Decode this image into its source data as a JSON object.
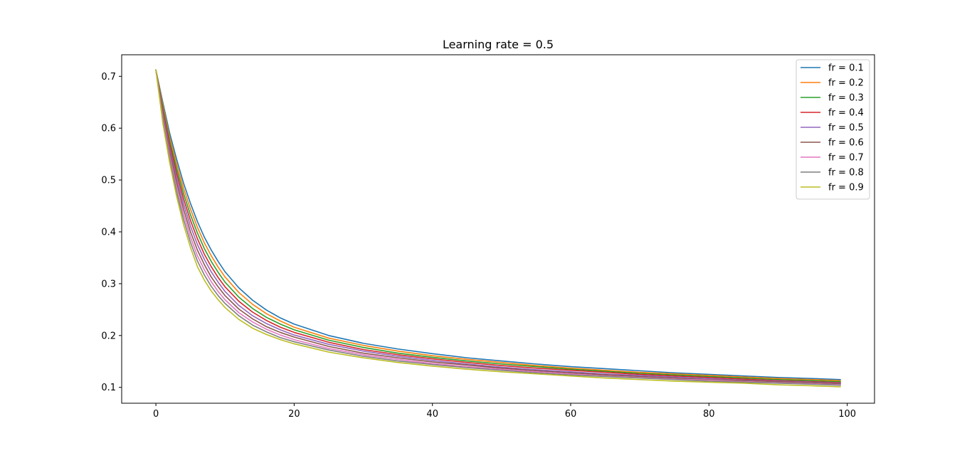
{
  "chart_data": {
    "type": "line",
    "title": "Learning rate = 0.5",
    "xlabel": "",
    "ylabel": "",
    "xlim": [
      -4.95,
      103.95
    ],
    "ylim": [
      0.0694,
      0.7416
    ],
    "xticks": [
      0,
      20,
      40,
      60,
      80,
      100
    ],
    "yticks": [
      0.1,
      0.2,
      0.3,
      0.4,
      0.5,
      0.6,
      0.7
    ],
    "grid": false,
    "legend_position": "top-right",
    "x": [
      0,
      1,
      2,
      3,
      4,
      5,
      6,
      7,
      8,
      9,
      10,
      12,
      14,
      16,
      18,
      20,
      25,
      30,
      35,
      40,
      45,
      50,
      55,
      60,
      65,
      70,
      75,
      80,
      85,
      90,
      95,
      99
    ],
    "series": [
      {
        "name": "fr = 0.1",
        "color": "#1f77b4",
        "values": [
          0.712,
          0.65,
          0.59,
          0.54,
          0.494,
          0.455,
          0.42,
          0.39,
          0.365,
          0.343,
          0.323,
          0.292,
          0.268,
          0.249,
          0.234,
          0.222,
          0.2,
          0.185,
          0.174,
          0.165,
          0.157,
          0.151,
          0.145,
          0.14,
          0.136,
          0.132,
          0.128,
          0.125,
          0.122,
          0.119,
          0.117,
          0.115
        ]
      },
      {
        "name": "fr = 0.2",
        "color": "#ff7f0e",
        "values": [
          0.712,
          0.645,
          0.582,
          0.531,
          0.484,
          0.444,
          0.409,
          0.379,
          0.354,
          0.332,
          0.313,
          0.283,
          0.26,
          0.242,
          0.228,
          0.216,
          0.195,
          0.181,
          0.17,
          0.161,
          0.154,
          0.148,
          0.142,
          0.137,
          0.133,
          0.129,
          0.126,
          0.123,
          0.12,
          0.117,
          0.115,
          0.113
        ]
      },
      {
        "name": "fr = 0.3",
        "color": "#2ca02c",
        "values": [
          0.712,
          0.64,
          0.575,
          0.522,
          0.474,
          0.433,
          0.398,
          0.368,
          0.343,
          0.322,
          0.303,
          0.274,
          0.252,
          0.235,
          0.222,
          0.211,
          0.191,
          0.177,
          0.166,
          0.158,
          0.151,
          0.145,
          0.14,
          0.135,
          0.131,
          0.127,
          0.124,
          0.121,
          0.118,
          0.115,
          0.113,
          0.111
        ]
      },
      {
        "name": "fr = 0.4",
        "color": "#d62728",
        "values": [
          0.712,
          0.635,
          0.568,
          0.513,
          0.464,
          0.422,
          0.387,
          0.357,
          0.333,
          0.312,
          0.294,
          0.266,
          0.245,
          0.229,
          0.216,
          0.206,
          0.187,
          0.173,
          0.163,
          0.155,
          0.148,
          0.142,
          0.137,
          0.133,
          0.129,
          0.125,
          0.122,
          0.119,
          0.116,
          0.113,
          0.111,
          0.109
        ]
      },
      {
        "name": "fr = 0.5",
        "color": "#9467bd",
        "values": [
          0.712,
          0.63,
          0.561,
          0.504,
          0.454,
          0.411,
          0.376,
          0.347,
          0.323,
          0.303,
          0.285,
          0.258,
          0.238,
          0.223,
          0.211,
          0.201,
          0.183,
          0.17,
          0.16,
          0.152,
          0.145,
          0.139,
          0.134,
          0.13,
          0.126,
          0.123,
          0.12,
          0.117,
          0.114,
          0.112,
          0.11,
          0.108
        ]
      },
      {
        "name": "fr = 0.6",
        "color": "#8c564b",
        "values": [
          0.712,
          0.625,
          0.554,
          0.495,
          0.444,
          0.4,
          0.365,
          0.337,
          0.313,
          0.294,
          0.277,
          0.251,
          0.232,
          0.217,
          0.206,
          0.197,
          0.179,
          0.166,
          0.157,
          0.149,
          0.143,
          0.137,
          0.132,
          0.128,
          0.124,
          0.121,
          0.118,
          0.115,
          0.113,
          0.111,
          0.109,
          0.107
        ]
      },
      {
        "name": "fr = 0.7",
        "color": "#e377c2",
        "values": [
          0.712,
          0.62,
          0.547,
          0.486,
          0.434,
          0.39,
          0.354,
          0.327,
          0.304,
          0.285,
          0.269,
          0.244,
          0.226,
          0.212,
          0.201,
          0.192,
          0.175,
          0.163,
          0.154,
          0.146,
          0.14,
          0.135,
          0.13,
          0.126,
          0.122,
          0.119,
          0.116,
          0.114,
          0.111,
          0.109,
          0.107,
          0.105
        ]
      },
      {
        "name": "fr = 0.8",
        "color": "#7f7f7f",
        "values": [
          0.712,
          0.615,
          0.54,
          0.477,
          0.424,
          0.38,
          0.344,
          0.317,
          0.295,
          0.277,
          0.262,
          0.238,
          0.22,
          0.207,
          0.196,
          0.188,
          0.172,
          0.16,
          0.151,
          0.144,
          0.138,
          0.133,
          0.128,
          0.124,
          0.121,
          0.118,
          0.115,
          0.112,
          0.11,
          0.108,
          0.106,
          0.104
        ]
      },
      {
        "name": "fr = 0.9",
        "color": "#bcbd22",
        "values": [
          0.712,
          0.61,
          0.533,
          0.468,
          0.414,
          0.37,
          0.333,
          0.307,
          0.286,
          0.269,
          0.254,
          0.231,
          0.214,
          0.202,
          0.192,
          0.184,
          0.168,
          0.157,
          0.148,
          0.141,
          0.135,
          0.13,
          0.126,
          0.122,
          0.118,
          0.115,
          0.112,
          0.11,
          0.108,
          0.105,
          0.103,
          0.101
        ]
      }
    ]
  }
}
